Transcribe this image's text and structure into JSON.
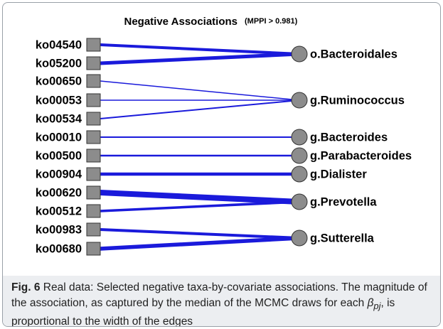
{
  "figure": {
    "title": "Negative Associations",
    "subtitle": "(MPPI > 0.981)",
    "left_nodes": [
      "ko04540",
      "ko05200",
      "ko00650",
      "ko00053",
      "ko00534",
      "ko00010",
      "ko00500",
      "ko00904",
      "ko00620",
      "ko00512",
      "ko00983",
      "ko00680"
    ],
    "right_nodes": [
      "o.Bacteroidales",
      "g.Ruminococcus",
      "g.Bacteroides",
      "g.Parabacteroides",
      "g.Dialister",
      "g.Prevotella",
      "g.Sutterella"
    ]
  },
  "caption": {
    "label": "Fig. 6",
    "text_before": "Real data: Selected negative taxa-by-covariate associations. The magnitude of the association, as captured by the median of the MCMC draws for each ",
    "symbol": "β",
    "subscript": "pj",
    "text_after": ", is proportional to the width of the edges"
  }
}
